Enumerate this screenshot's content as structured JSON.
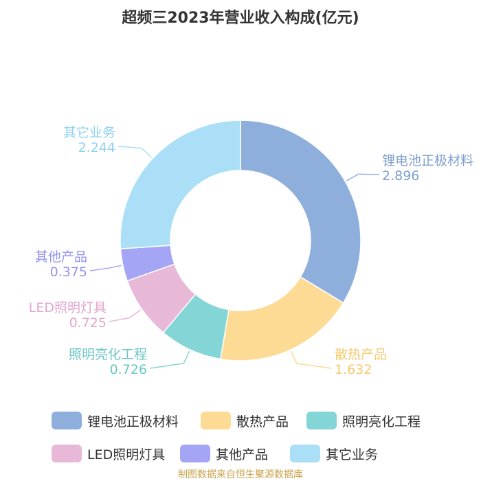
{
  "chart_data": {
    "type": "pie",
    "title": "超频三2023年营业收入构成(亿元)",
    "donut": true,
    "categories": [
      "锂电池正极材料",
      "散热产品",
      "照明亮化工程",
      "LED照明灯具",
      "其他产品",
      "其它业务"
    ],
    "values": [
      2.896,
      1.632,
      0.726,
      0.725,
      0.375,
      2.244
    ],
    "value_labels": [
      "2.896",
      "1.632",
      "0.726",
      "0.725",
      "0.375",
      "2.244"
    ],
    "colors": [
      "#8eaedc",
      "#fedb95",
      "#84d5d5",
      "#e8b8d8",
      "#a5a5f5",
      "#abdff8"
    ],
    "legend_position": "bottom"
  },
  "source_note": "制图数据来自恒生聚源数据库"
}
